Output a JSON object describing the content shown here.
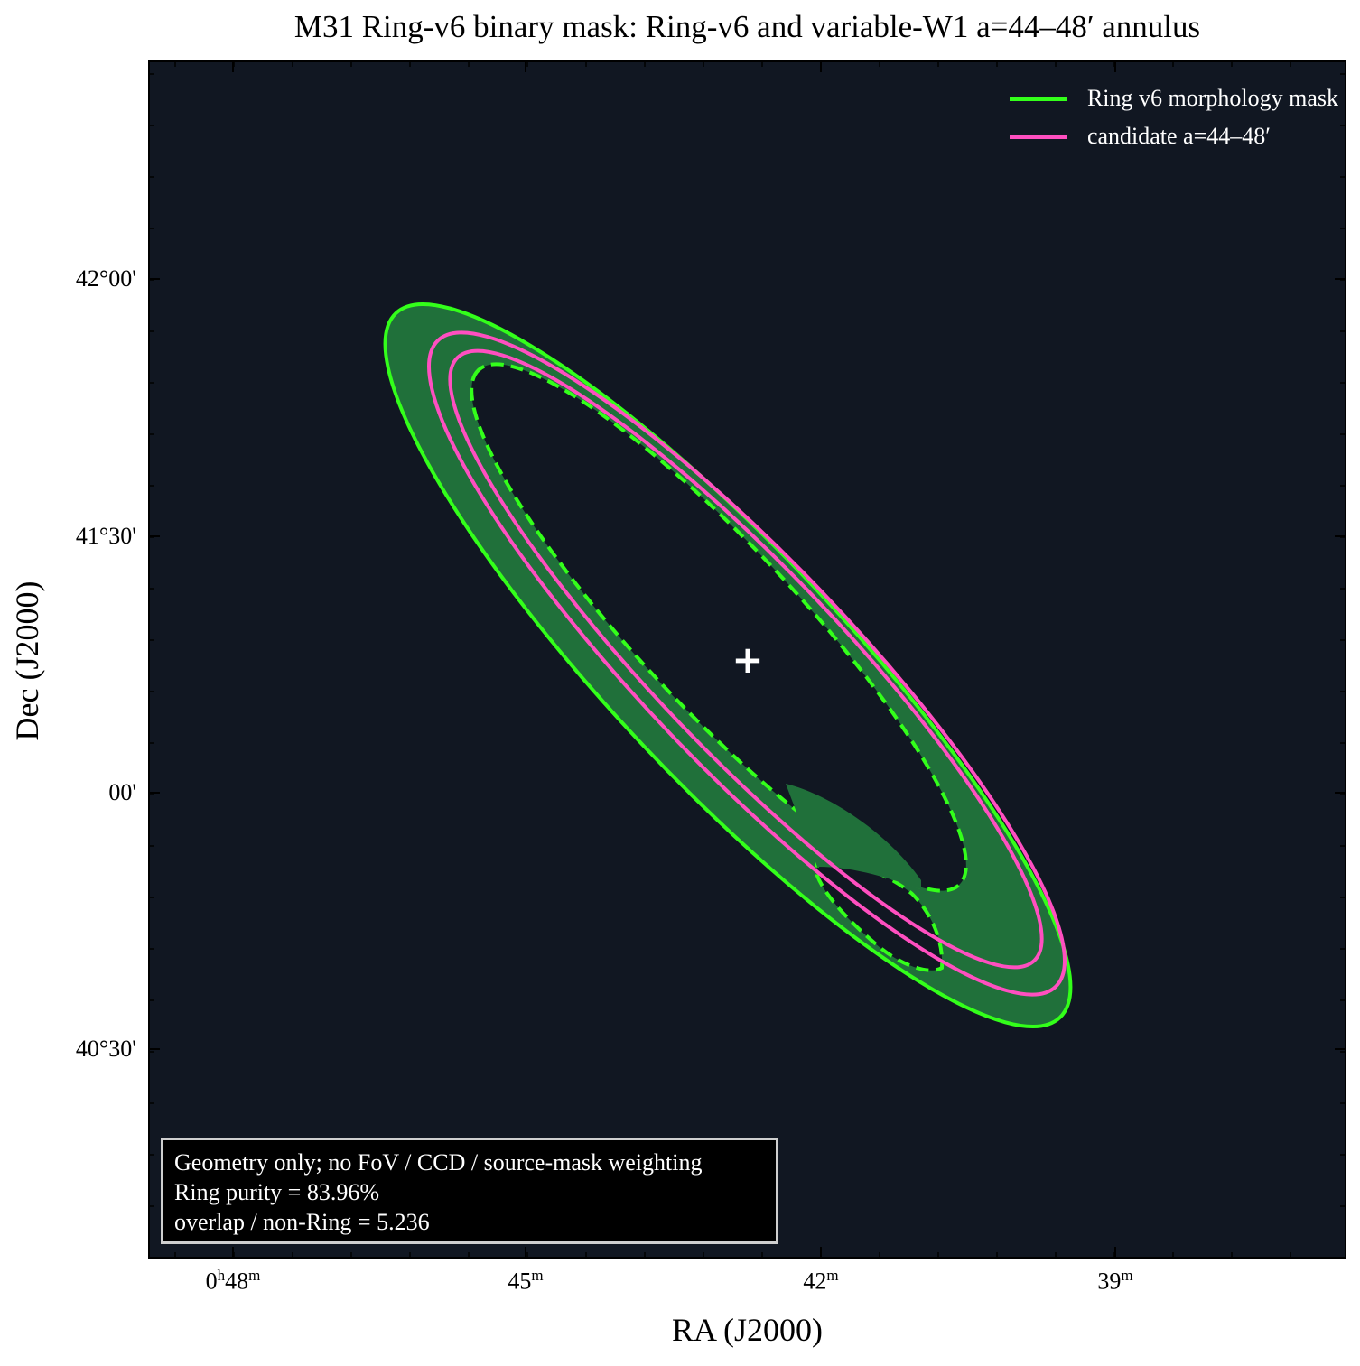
{
  "chart_data": {
    "type": "map",
    "title": "M31 Ring-v6 binary mask: Ring-v6 and variable-W1 a=44–48′ annulus",
    "xlabel": "RA (J2000)",
    "ylabel": "Dec (J2000)",
    "x_ticks": [
      {
        "base": "0",
        "sup1": "h",
        "mid": "48",
        "sup2": "m"
      },
      {
        "base": "",
        "sup1": "",
        "mid": "45",
        "sup2": "m"
      },
      {
        "base": "",
        "sup1": "",
        "mid": "42",
        "sup2": "m"
      },
      {
        "base": "",
        "sup1": "",
        "mid": "39",
        "sup2": "m"
      }
    ],
    "y_ticks": [
      "42°00'",
      "41°30'",
      "00'",
      "40°30'"
    ],
    "legend": {
      "placement": "top-right",
      "entries": [
        {
          "label": "Ring v6 morphology mask",
          "color": "#33ff1a"
        },
        {
          "label": "candidate a=44–48′",
          "color": "#ff4fc0"
        }
      ]
    },
    "annotation": [
      "Geometry only; no FoV / CCD / source-mask weighting",
      "Ring purity = 83.96%",
      "overlap / non-Ring = 5.236"
    ],
    "center_marker": "+",
    "colors": {
      "background": "#111722",
      "mask_fill": "#20703a",
      "mask_edge": "#33ff1a",
      "candidate": "#ff4fc0"
    }
  }
}
